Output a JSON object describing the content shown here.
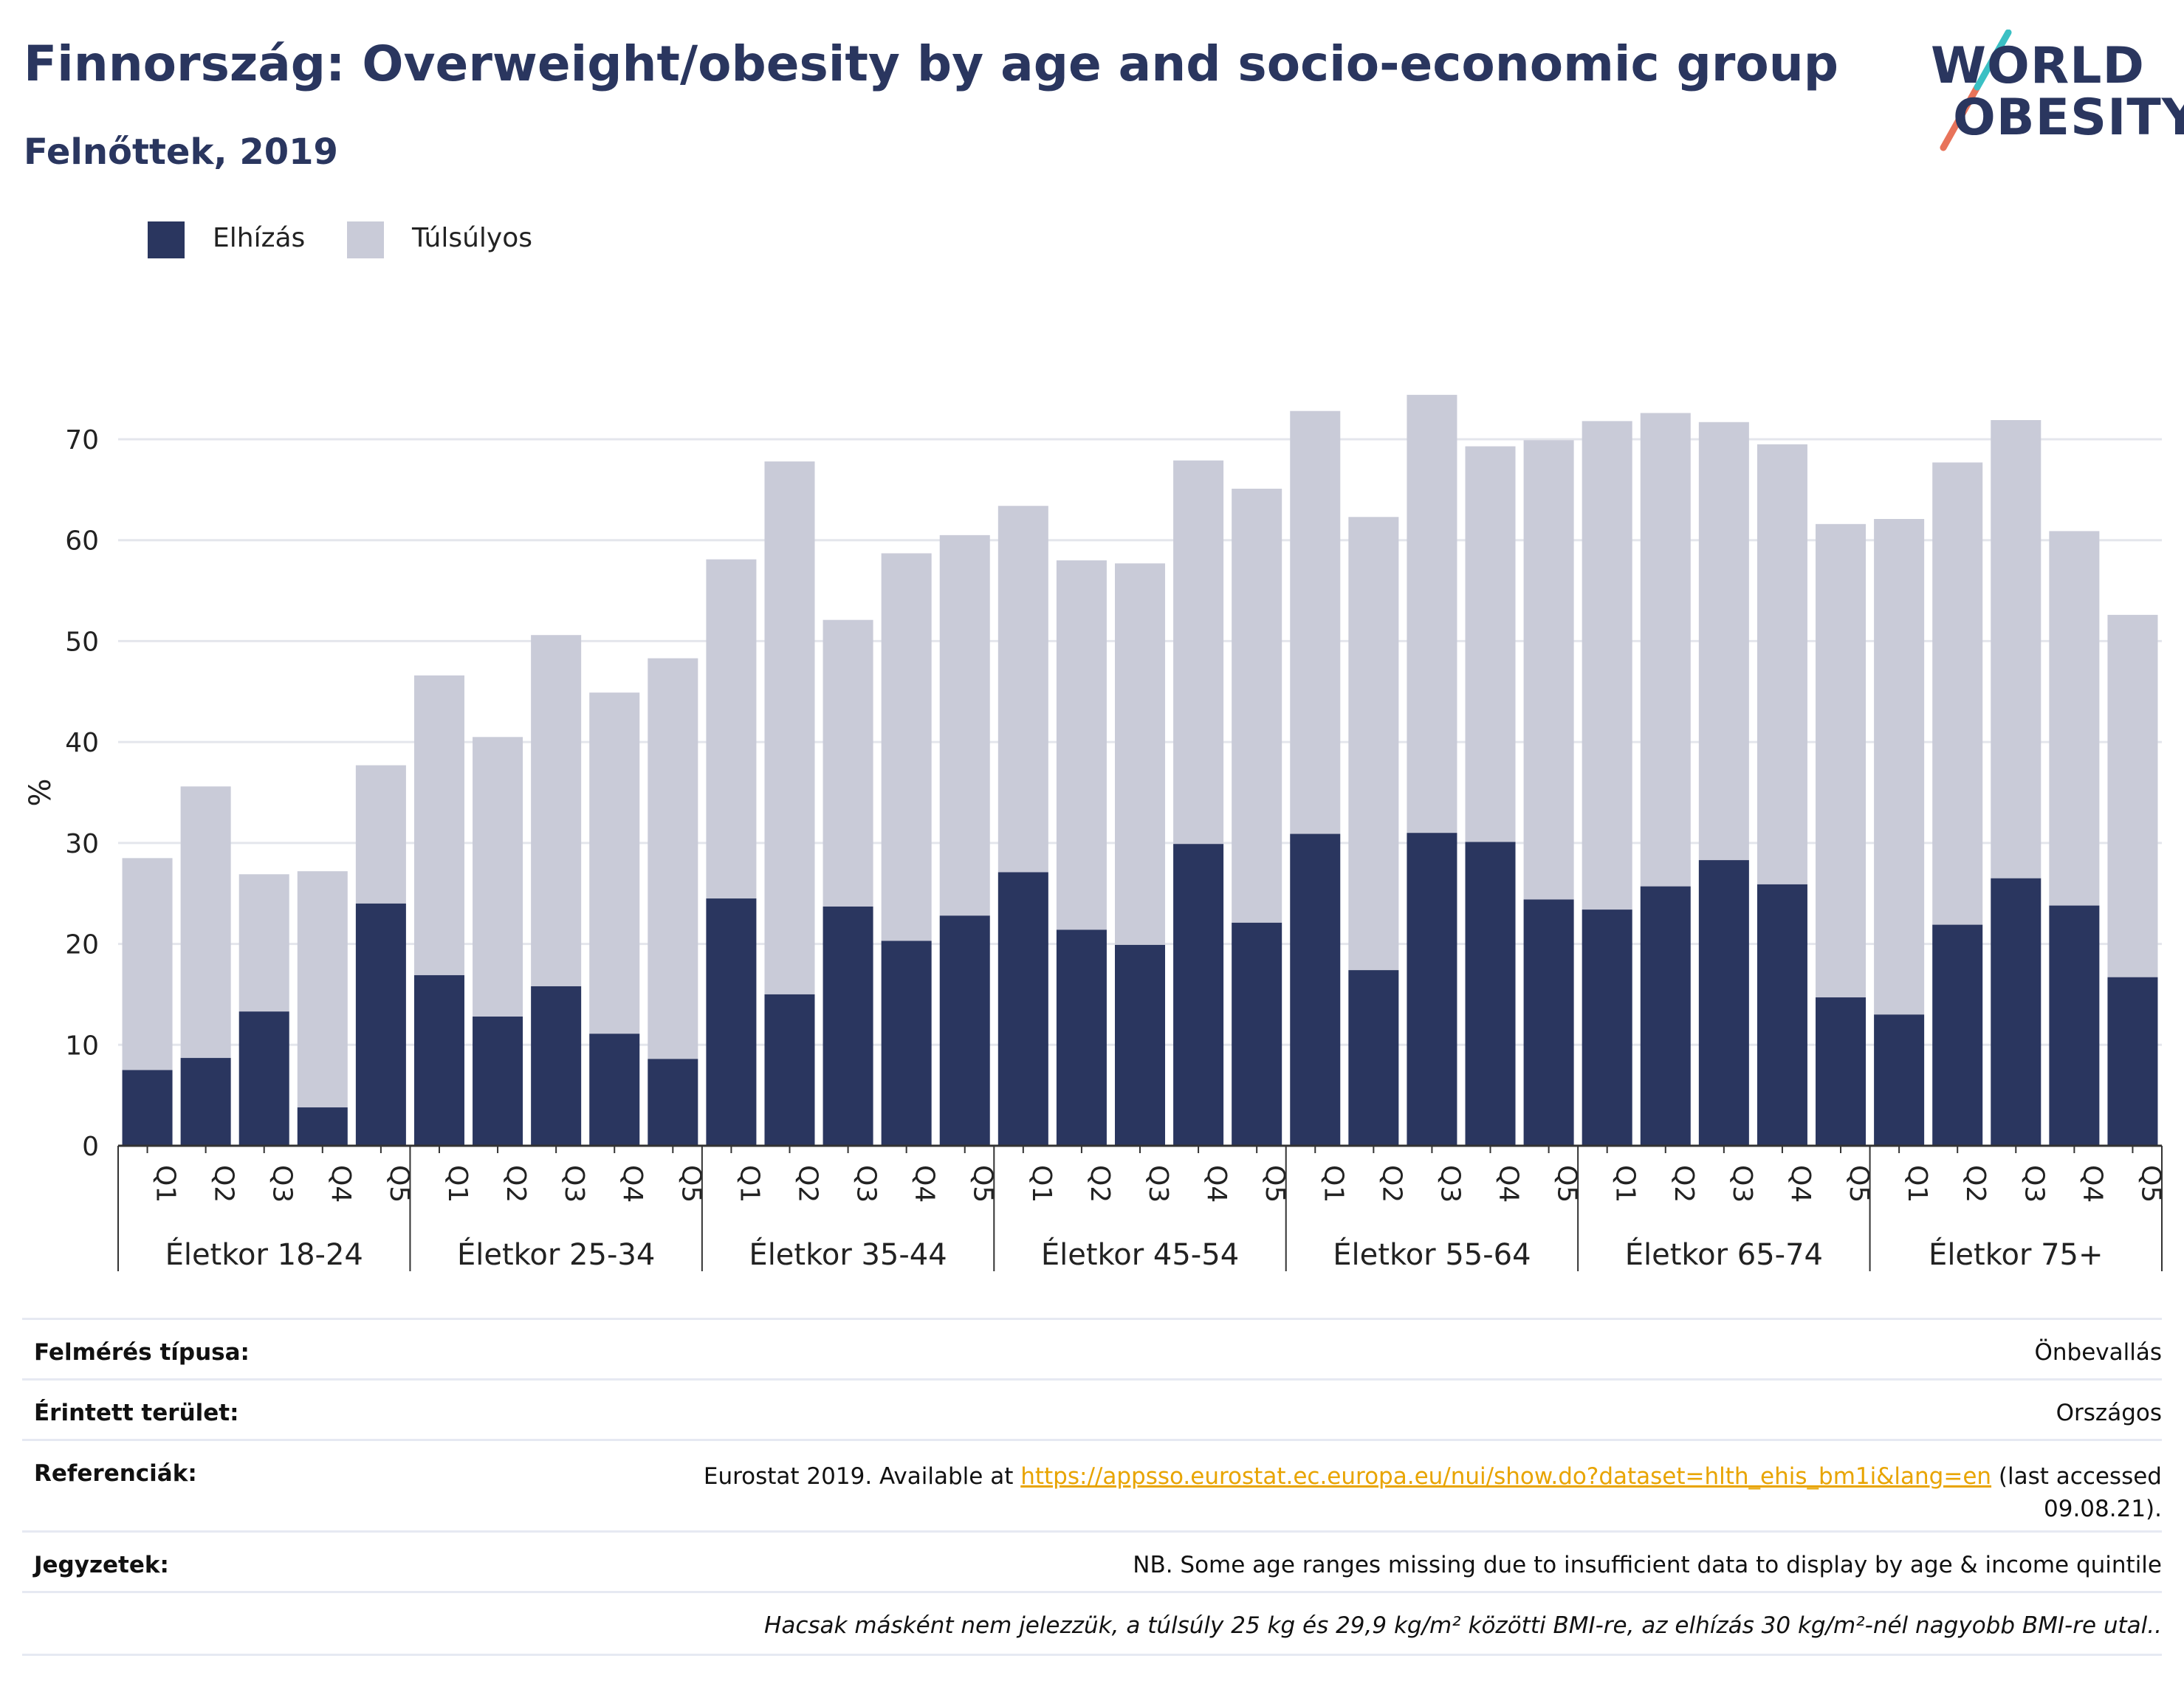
{
  "header": {
    "title": "Finnország: Overweight/obesity by age and socio-economic group",
    "subtitle": "Felnőttek, 2019"
  },
  "logo": {
    "line1": "WORLD",
    "line2": "OBESITY",
    "slash_colors": [
      "#3ac0c4",
      "#e8735a"
    ]
  },
  "colors": {
    "obesity": "#2a365f",
    "overweight": "#c9cbd8",
    "title": "#2a365f",
    "link": "#e8a400"
  },
  "legend": [
    {
      "label": "Elhízás",
      "color": "#2a365f"
    },
    {
      "label": "Túlsúlyos",
      "color": "#c9cbd8"
    }
  ],
  "chart_data": {
    "type": "bar",
    "stacked": true,
    "ylabel": "%",
    "ylim": [
      0,
      80
    ],
    "yticks": [
      0,
      10,
      20,
      30,
      40,
      50,
      60,
      70
    ],
    "grid": true,
    "legend_position": "top-left",
    "groups": [
      {
        "label": "Életkor 18-24",
        "categories": [
          "Q1",
          "Q2",
          "Q3",
          "Q4",
          "Q5"
        ],
        "obesity": [
          7.5,
          8.7,
          13.3,
          3.8,
          24.0
        ],
        "total": [
          28.5,
          35.6,
          26.9,
          27.2,
          37.7
        ]
      },
      {
        "label": "Életkor 25-34",
        "categories": [
          "Q1",
          "Q2",
          "Q3",
          "Q4",
          "Q5"
        ],
        "obesity": [
          16.9,
          12.8,
          15.8,
          11.1,
          8.6
        ],
        "total": [
          46.6,
          40.5,
          50.6,
          44.9,
          48.3
        ]
      },
      {
        "label": "Életkor 35-44",
        "categories": [
          "Q1",
          "Q2",
          "Q3",
          "Q4",
          "Q5"
        ],
        "obesity": [
          24.5,
          15.0,
          23.7,
          20.3,
          22.8
        ],
        "total": [
          58.1,
          67.8,
          52.1,
          58.7,
          60.5
        ]
      },
      {
        "label": "Életkor 45-54",
        "categories": [
          "Q1",
          "Q2",
          "Q3",
          "Q4",
          "Q5"
        ],
        "obesity": [
          27.1,
          21.4,
          19.9,
          29.9,
          22.1
        ],
        "total": [
          63.4,
          58.0,
          57.7,
          67.9,
          65.1
        ]
      },
      {
        "label": "Életkor 55-64",
        "categories": [
          "Q1",
          "Q2",
          "Q3",
          "Q4",
          "Q5"
        ],
        "obesity": [
          30.9,
          17.4,
          31.0,
          30.1,
          24.4
        ],
        "total": [
          72.8,
          62.3,
          74.4,
          69.3,
          69.9
        ]
      },
      {
        "label": "Életkor 65-74",
        "categories": [
          "Q1",
          "Q2",
          "Q3",
          "Q4",
          "Q5"
        ],
        "obesity": [
          23.4,
          25.7,
          28.3,
          25.9,
          14.7
        ],
        "total": [
          71.8,
          72.6,
          71.7,
          69.5,
          61.6
        ]
      },
      {
        "label": "Életkor 75+",
        "categories": [
          "Q1",
          "Q2",
          "Q3",
          "Q4",
          "Q5"
        ],
        "obesity": [
          13.0,
          21.9,
          26.5,
          23.8,
          16.7
        ],
        "total": [
          62.1,
          67.7,
          71.9,
          60.9,
          52.6
        ]
      }
    ],
    "series": [
      {
        "name": "Elhízás",
        "key": "obesity"
      },
      {
        "name": "Túlsúlyos",
        "key": "total_minus_obesity"
      }
    ]
  },
  "meta": {
    "survey_label": "Felmérés típusa:",
    "survey_value": "Önbevallás",
    "area_label": "Érintett terület:",
    "area_value": "Országos",
    "ref_label": "Referenciák:",
    "ref_prefix": "Eurostat 2019. Available at ",
    "ref_link": "https://appsso.eurostat.ec.europa.eu/nui/show.do?dataset=hlth_ehis_bm1i&lang=en",
    "ref_suffix": " (last accessed",
    "ref_date": "09.08.21).",
    "notes_label": "Jegyzetek:",
    "notes_value": "NB. Some age ranges missing due to insufficient data to display by age & income quintile",
    "footnote": "Hacsak másként nem jelezzük, a túlsúly 25 kg és 29,9 kg/m² közötti BMI-re, az elhízás 30 kg/m²-nél nagyobb BMI-re utal.."
  }
}
